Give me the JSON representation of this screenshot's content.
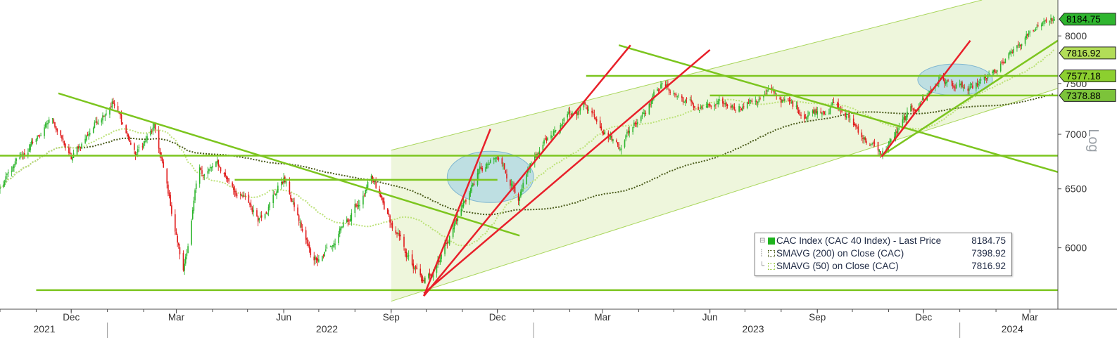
{
  "chart_data": {
    "type": "candlestick",
    "title": "",
    "y_scale": "log",
    "y_scale_label": "Log",
    "ylim": [
      5520,
      8400
    ],
    "y_ticks": [
      6000,
      6500,
      7000,
      7500,
      8000
    ],
    "x_range": [
      "2021-10-01",
      "2024-03-25"
    ],
    "x_month_ticks": [
      {
        "label": "Dec",
        "date": "2021-12-01"
      },
      {
        "label": "Mar",
        "date": "2022-03-01"
      },
      {
        "label": "Jun",
        "date": "2022-06-01"
      },
      {
        "label": "Sep",
        "date": "2022-09-01"
      },
      {
        "label": "Dec",
        "date": "2022-12-01"
      },
      {
        "label": "Mar",
        "date": "2023-03-01"
      },
      {
        "label": "Jun",
        "date": "2023-06-01"
      },
      {
        "label": "Sep",
        "date": "2023-09-01"
      },
      {
        "label": "Dec",
        "date": "2023-12-01"
      },
      {
        "label": "Mar",
        "date": "2024-03-01"
      }
    ],
    "x_year_labels": [
      {
        "label": "2021",
        "date": "2021-11-08"
      },
      {
        "label": "2022",
        "date": "2022-07-08"
      },
      {
        "label": "2023",
        "date": "2023-07-08"
      },
      {
        "label": "2024",
        "date": "2024-02-15"
      }
    ],
    "x_year_separators": [
      "2022-01-01",
      "2023-01-01",
      "2024-01-01"
    ],
    "grid": false,
    "legend_position": "lower-right",
    "price_path": [
      {
        "date": "2021-10-01",
        "value": 6500
      },
      {
        "date": "2021-11-01",
        "value": 6950
      },
      {
        "date": "2021-11-15",
        "value": 7150
      },
      {
        "date": "2021-12-01",
        "value": 6750
      },
      {
        "date": "2021-12-15",
        "value": 7000
      },
      {
        "date": "2022-01-05",
        "value": 7350
      },
      {
        "date": "2022-01-25",
        "value": 6800
      },
      {
        "date": "2022-02-10",
        "value": 7050
      },
      {
        "date": "2022-03-07",
        "value": 5800
      },
      {
        "date": "2022-03-20",
        "value": 6620
      },
      {
        "date": "2022-04-05",
        "value": 6700
      },
      {
        "date": "2022-05-10",
        "value": 6250
      },
      {
        "date": "2022-06-01",
        "value": 6600
      },
      {
        "date": "2022-06-25",
        "value": 5900
      },
      {
        "date": "2022-07-15",
        "value": 6050
      },
      {
        "date": "2022-08-15",
        "value": 6550
      },
      {
        "date": "2022-09-05",
        "value": 6100
      },
      {
        "date": "2022-09-29",
        "value": 5680
      },
      {
        "date": "2022-10-20",
        "value": 6100
      },
      {
        "date": "2022-11-15",
        "value": 6650
      },
      {
        "date": "2022-12-01",
        "value": 6750
      },
      {
        "date": "2022-12-20",
        "value": 6450
      },
      {
        "date": "2023-01-15",
        "value": 7000
      },
      {
        "date": "2023-02-15",
        "value": 7300
      },
      {
        "date": "2023-03-15",
        "value": 6900
      },
      {
        "date": "2023-04-20",
        "value": 7500
      },
      {
        "date": "2023-05-20",
        "value": 7250
      },
      {
        "date": "2023-06-15",
        "value": 7250
      },
      {
        "date": "2023-07-25",
        "value": 7400
      },
      {
        "date": "2023-08-20",
        "value": 7200
      },
      {
        "date": "2023-09-15",
        "value": 7300
      },
      {
        "date": "2023-10-26",
        "value": 6800
      },
      {
        "date": "2023-11-20",
        "value": 7200
      },
      {
        "date": "2023-12-15",
        "value": 7550
      },
      {
        "date": "2024-01-10",
        "value": 7400
      },
      {
        "date": "2024-02-01",
        "value": 7600
      },
      {
        "date": "2024-03-01",
        "value": 8000
      },
      {
        "date": "2024-03-14",
        "value": 8200
      },
      {
        "date": "2024-03-22",
        "value": 8184.75
      }
    ],
    "series": [
      {
        "name": "CAC Index (CAC 40 Index) - Last Price",
        "kind": "candlestick",
        "last": "8184.75",
        "color_up": "#2db52d",
        "color_down": "#e01a1a",
        "marker_color": "#1fb31f"
      },
      {
        "name": "SMAVG (200)  on Close (CAC)",
        "kind": "moving_average",
        "period": 200,
        "last": "7398.92",
        "color": "#4d5e1e"
      },
      {
        "name": "SMAVG (50)  on Close (CAC)",
        "kind": "moving_average",
        "period": 50,
        "last": "7816.92",
        "color": "#bde27a"
      }
    ],
    "price_tags": [
      {
        "value": 8184.75,
        "label": "8184.75",
        "fill": "#2fb52f",
        "text_color": "#000000"
      },
      {
        "value": 7816.92,
        "label": "7816.92",
        "fill": "#b2dd58",
        "text_color": "#000000"
      },
      {
        "value": 7577.18,
        "label": "7577.18",
        "fill": "#8ccf2f",
        "text_color": "#000000"
      },
      {
        "value": 7378.88,
        "label": "7378.88",
        "fill": "#7cc33a",
        "text_color": "#000000"
      }
    ],
    "annotations": {
      "horizontal_levels": [
        {
          "value": 5665,
          "start": "2021-11-01",
          "end": "2024-03-25",
          "color": "#7cc51f"
        },
        {
          "value": 6800,
          "start": "2021-10-01",
          "end": "2024-03-25",
          "color": "#7cc51f"
        },
        {
          "value": 7577.18,
          "start": "2023-02-15",
          "end": "2024-03-25",
          "color": "#7cc51f"
        },
        {
          "value": 7378.88,
          "start": "2023-06-01",
          "end": "2024-03-25",
          "color": "#7cc51f"
        },
        {
          "value": 6580,
          "start": "2022-04-20",
          "end": "2022-12-01",
          "color": "#7cc51f"
        }
      ],
      "trend_lines": [
        {
          "color": "#7cc51f",
          "from": {
            "date": "2021-11-20",
            "value": 7400
          },
          "to": {
            "date": "2022-12-20",
            "value": 6100
          }
        },
        {
          "color": "#7cc51f",
          "from": {
            "date": "2023-03-15",
            "value": 7900
          },
          "to": {
            "date": "2024-03-25",
            "value": 6650
          }
        },
        {
          "color": "#7cc51f",
          "from": {
            "date": "2023-10-26",
            "value": 6800
          },
          "to": {
            "date": "2024-03-25",
            "value": 7950
          }
        },
        {
          "color": "#e8202a",
          "from": {
            "date": "2022-09-29",
            "value": 5620
          },
          "to": {
            "date": "2022-11-25",
            "value": 7050
          }
        },
        {
          "color": "#e8202a",
          "from": {
            "date": "2022-09-29",
            "value": 5620
          },
          "to": {
            "date": "2023-03-25",
            "value": 7900
          }
        },
        {
          "color": "#e8202a",
          "from": {
            "date": "2022-09-29",
            "value": 5640
          },
          "to": {
            "date": "2023-06-01",
            "value": 7850
          }
        },
        {
          "color": "#e8202a",
          "from": {
            "date": "2023-10-26",
            "value": 6790
          },
          "to": {
            "date": "2024-01-10",
            "value": 7950
          }
        }
      ],
      "channel": {
        "fill": "#eef6dc",
        "border_color": "#a9d65c",
        "upper": [
          {
            "date": "2022-09-01",
            "value": 6850
          },
          {
            "date": "2024-01-20",
            "value": 8400
          }
        ],
        "lower": [
          {
            "date": "2022-09-01",
            "value": 5580
          },
          {
            "date": "2024-03-25",
            "value": 7450
          }
        ]
      },
      "ellipses": [
        {
          "center": {
            "date": "2022-11-25",
            "value": 6600
          },
          "half_width_days": 37,
          "value_top": 6840,
          "value_bottom": 6380,
          "fill": "#9fd0e6"
        },
        {
          "center": {
            "date": "2023-12-28",
            "value": 7550
          },
          "half_width_days": 32,
          "value_top": 7700,
          "value_bottom": 7380,
          "fill": "#9fd0e6"
        }
      ]
    }
  }
}
